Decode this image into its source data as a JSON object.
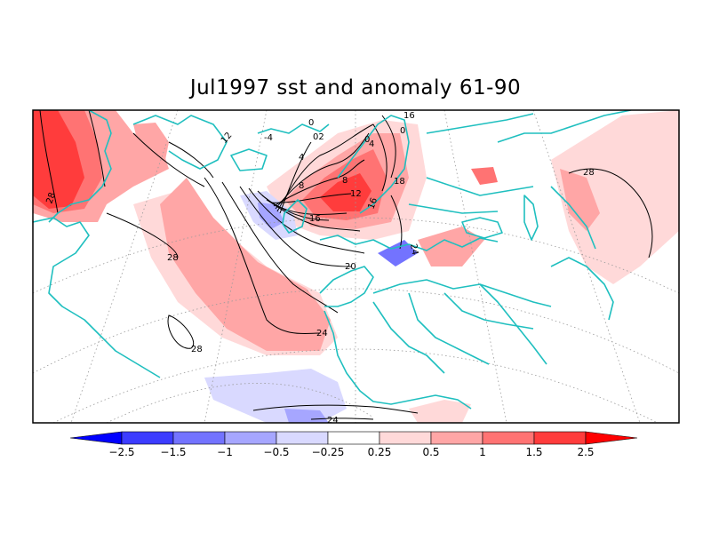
{
  "title": "Jul1997 sst and anomaly 61-90",
  "colors": {
    "coast": "#1fbfbf",
    "contour": "#000000",
    "frame": "#000000"
  },
  "colorbar": {
    "min_arrow_color": "#0000ff",
    "max_arrow_color": "#ff0000",
    "bins": [
      {
        "color": "#3c3cff"
      },
      {
        "color": "#7373ff"
      },
      {
        "color": "#a6a6ff"
      },
      {
        "color": "#d9d9ff"
      },
      {
        "color": "#ffffff"
      },
      {
        "color": "#ffd9d9"
      },
      {
        "color": "#ffa6a6"
      },
      {
        "color": "#ff7373"
      },
      {
        "color": "#ff3c3c"
      }
    ],
    "labels": [
      "−2.5",
      "−1.5",
      "−1",
      "−0.5",
      "−0.25",
      "0.25",
      "0.5",
      "1",
      "1.5",
      "2.5"
    ]
  },
  "contour_labels": [
    {
      "text": "28"
    },
    {
      "text": "28"
    },
    {
      "text": "28"
    },
    {
      "text": "28"
    },
    {
      "text": "24"
    },
    {
      "text": "24"
    },
    {
      "text": "24"
    },
    {
      "text": "20"
    },
    {
      "text": "16"
    },
    {
      "text": "16"
    },
    {
      "text": "12"
    },
    {
      "text": "12"
    },
    {
      "text": "8"
    },
    {
      "text": "8"
    },
    {
      "text": "4"
    },
    {
      "text": "4"
    },
    {
      "text": "0"
    },
    {
      "text": "0"
    },
    {
      "text": "02"
    },
    {
      "text": "-4"
    },
    {
      "text": "0"
    },
    {
      "text": "18"
    },
    {
      "text": "16"
    }
  ]
}
